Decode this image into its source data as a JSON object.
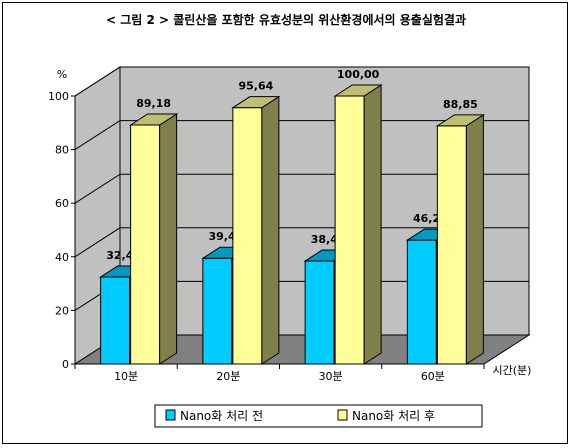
{
  "chart_data": {
    "type": "bar",
    "title": "< 그림 2 > 콜린산을 포함한 유효성분의 위산환경에서의 용출실험결과",
    "ylabel": "%",
    "xlabel": "시간(분)",
    "categories": [
      "10분",
      "20분",
      "30분",
      "60분"
    ],
    "yticks": [
      "0",
      "20",
      "40",
      "60",
      "80",
      "100"
    ],
    "ylim": [
      0,
      100
    ],
    "grid": true,
    "legend_position": "bottom",
    "series": [
      {
        "name": "Nano화 처리 전",
        "values": [
          32.46,
          39.46,
          38.42,
          46.23
        ],
        "labels": [
          "32,46",
          "39,46",
          "38,42",
          "46,23"
        ],
        "color": "#00ccff"
      },
      {
        "name": "Nano화 처리 후",
        "values": [
          89.18,
          95.64,
          100.0,
          88.85
        ],
        "labels": [
          "89,18",
          "95,64",
          "100,00",
          "88,85"
        ],
        "color": "#ffff99"
      }
    ],
    "colors": {
      "wall": "#c0c0c0",
      "floor": "#808080"
    }
  }
}
